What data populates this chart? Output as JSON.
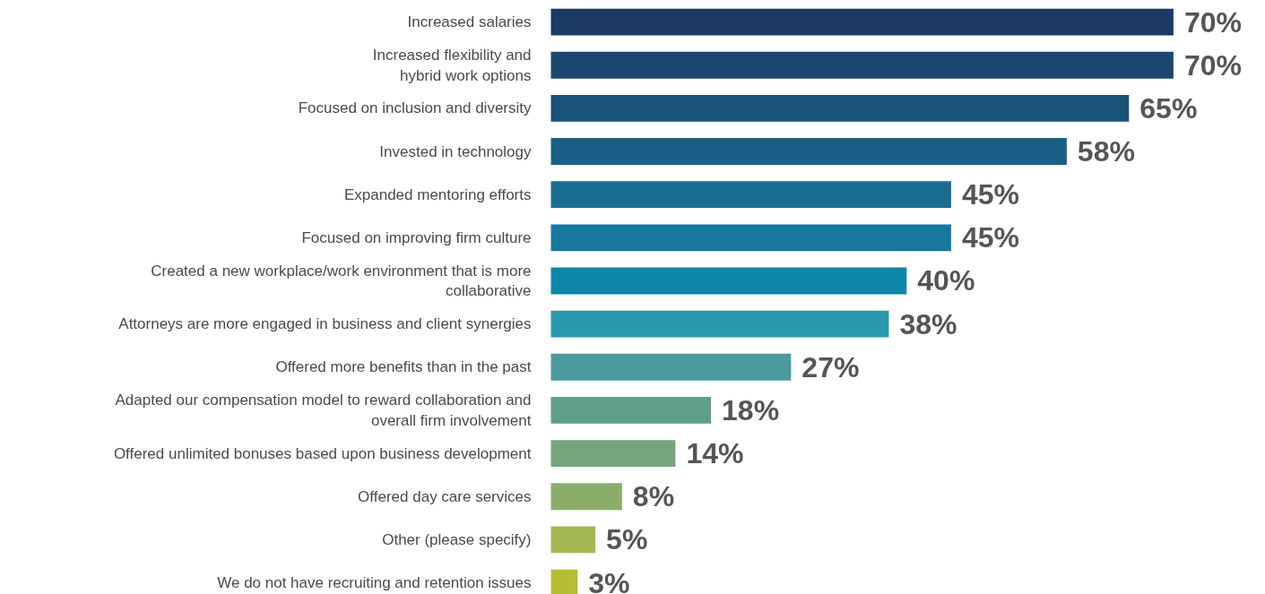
{
  "chart_data": {
    "type": "bar",
    "orientation": "horizontal",
    "categories": [
      "Increased salaries",
      "Increased flexibility and\nhybrid work options",
      "Focused on inclusion and diversity",
      "Invested in technology",
      "Expanded mentoring efforts",
      "Focused on improving firm culture",
      "Created a new workplace/work environment that is more\ncollaborative",
      "Attorneys are more engaged in business and client synergies",
      "Offered more benefits than in the past",
      "Adapted our compensation model to reward collaboration and\noverall firm involvement",
      "Offered unlimited bonuses based upon business development",
      "Offered day care services",
      "Other (please specify)",
      "We do not have recruiting and retention issues"
    ],
    "values": [
      70,
      70,
      65,
      58,
      45,
      45,
      40,
      38,
      27,
      18,
      14,
      8,
      5,
      3
    ],
    "value_labels": [
      "70%",
      "70%",
      "65%",
      "58%",
      "45%",
      "45%",
      "40%",
      "38%",
      "27%",
      "18%",
      "14%",
      "8%",
      "5%",
      "3%"
    ],
    "colors": [
      "#1b3a66",
      "#1c4670",
      "#1b5278",
      "#1a5f85",
      "#1a6d92",
      "#16789f",
      "#0e87a8",
      "#2a98ad",
      "#4a9aa0",
      "#5f9e8a",
      "#76a57a",
      "#8aae6a",
      "#a3b854",
      "#b5bd30"
    ]
  }
}
